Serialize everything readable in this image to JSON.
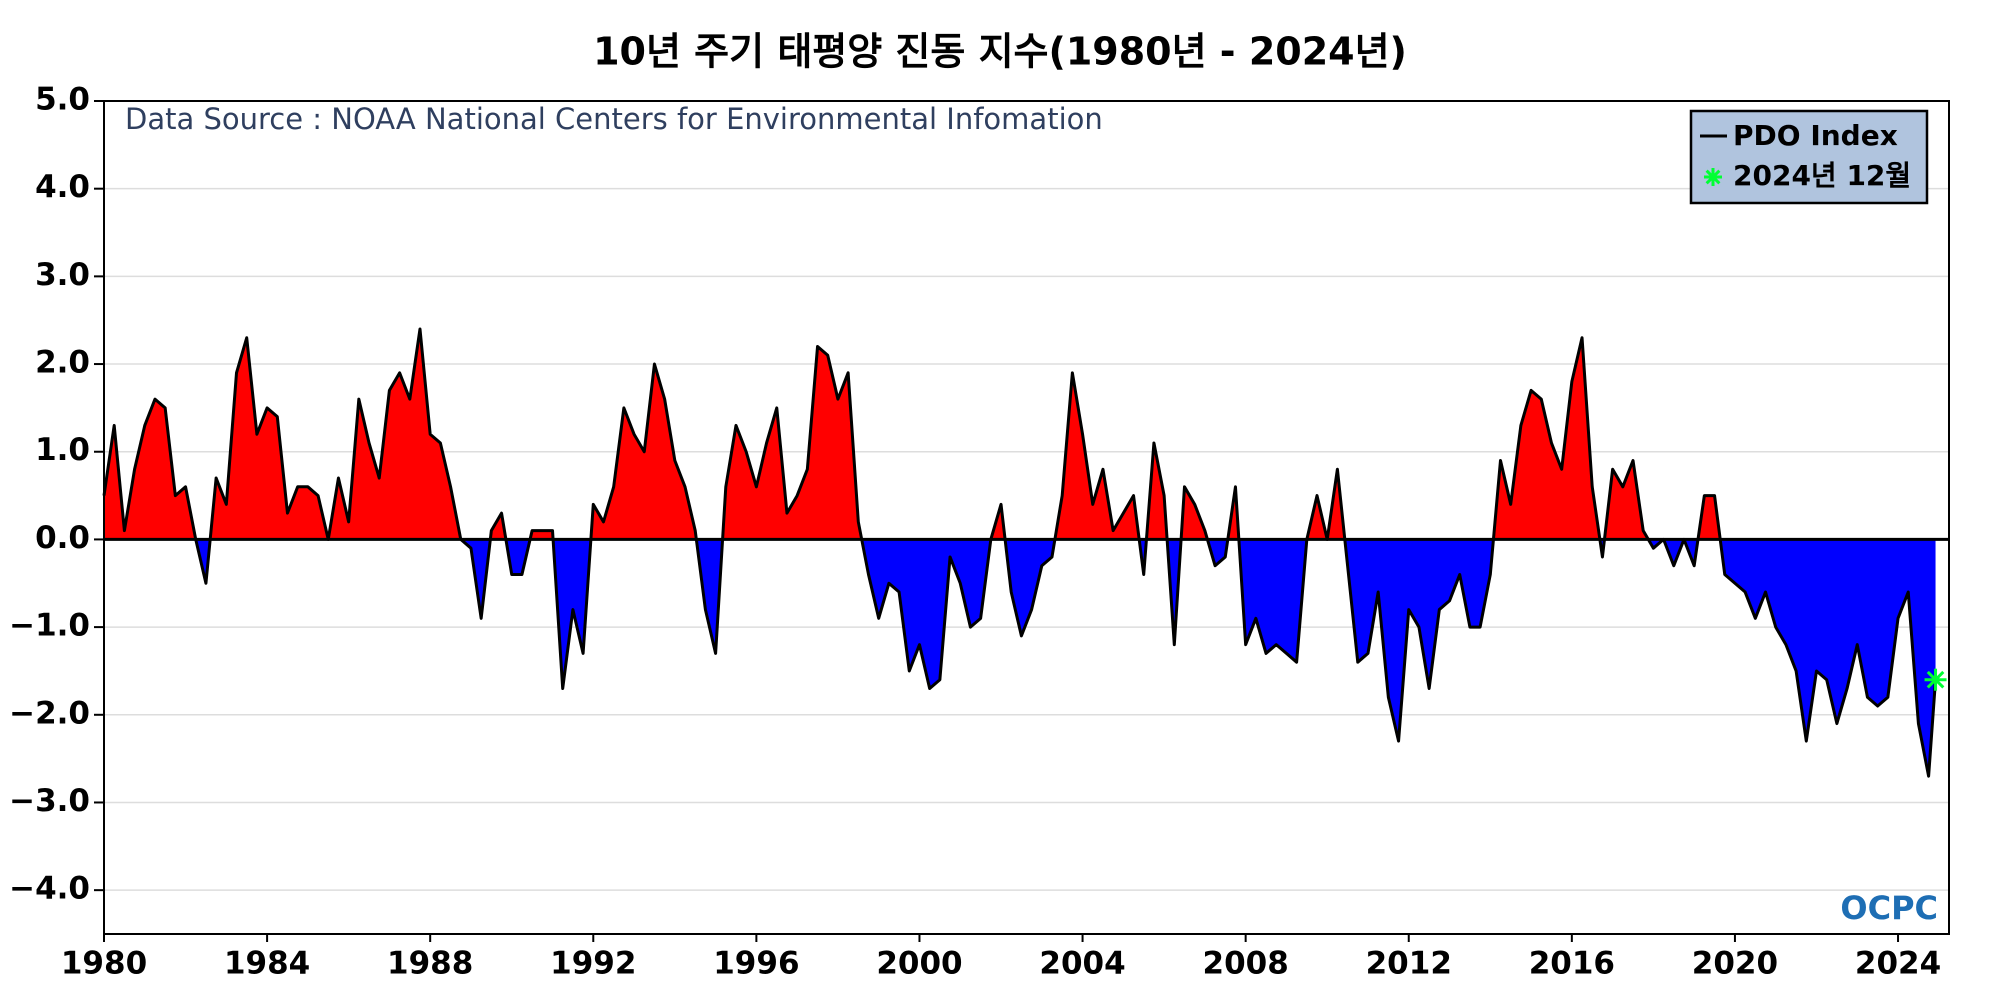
{
  "chart_data": {
    "type": "area",
    "title": "10년 주기 태평양 진동 지수(1980년 - 2024년)",
    "annotations": [
      "Data Source : NOAA National Centers for Environmental Infomation",
      "OCPC"
    ],
    "x": [
      1980,
      1980.25,
      1980.5,
      1980.75,
      1981,
      1981.25,
      1981.5,
      1981.75,
      1982,
      1982.25,
      1982.5,
      1982.75,
      1983,
      1983.25,
      1983.5,
      1983.75,
      1984,
      1984.25,
      1984.5,
      1984.75,
      1985,
      1985.25,
      1985.5,
      1985.75,
      1986,
      1986.25,
      1986.5,
      1986.75,
      1987,
      1987.25,
      1987.5,
      1987.75,
      1988,
      1988.25,
      1988.5,
      1988.75,
      1989,
      1989.25,
      1989.5,
      1989.75,
      1990,
      1990.25,
      1990.5,
      1990.75,
      1991,
      1991.25,
      1991.5,
      1991.75,
      1992,
      1992.25,
      1992.5,
      1992.75,
      1993,
      1993.25,
      1993.5,
      1993.75,
      1994,
      1994.25,
      1994.5,
      1994.75,
      1995,
      1995.25,
      1995.5,
      1995.75,
      1996,
      1996.25,
      1996.5,
      1996.75,
      1997,
      1997.25,
      1997.5,
      1997.75,
      1998,
      1998.25,
      1998.5,
      1998.75,
      1999,
      1999.25,
      1999.5,
      1999.75,
      2000,
      2000.25,
      2000.5,
      2000.75,
      2001,
      2001.25,
      2001.5,
      2001.75,
      2002,
      2002.25,
      2002.5,
      2002.75,
      2003,
      2003.25,
      2003.5,
      2003.75,
      2004,
      2004.25,
      2004.5,
      2004.75,
      2005,
      2005.25,
      2005.5,
      2005.75,
      2006,
      2006.25,
      2006.5,
      2006.75,
      2007,
      2007.25,
      2007.5,
      2007.75,
      2008,
      2008.25,
      2008.5,
      2008.75,
      2009,
      2009.25,
      2009.5,
      2009.75,
      2010,
      2010.25,
      2010.5,
      2010.75,
      2011,
      2011.25,
      2011.5,
      2011.75,
      2012,
      2012.25,
      2012.5,
      2012.75,
      2013,
      2013.25,
      2013.5,
      2013.75,
      2014,
      2014.25,
      2014.5,
      2014.75,
      2015,
      2015.25,
      2015.5,
      2015.75,
      2016,
      2016.25,
      2016.5,
      2016.75,
      2017,
      2017.25,
      2017.5,
      2017.75,
      2018,
      2018.25,
      2018.5,
      2018.75,
      2019,
      2019.25,
      2019.5,
      2019.75,
      2020,
      2020.25,
      2020.5,
      2020.75,
      2021,
      2021.25,
      2021.5,
      2021.75,
      2022,
      2022.25,
      2022.5,
      2022.75,
      2023,
      2023.25,
      2023.5,
      2023.75,
      2024,
      2024.25,
      2024.5,
      2024.75,
      2024.92
    ],
    "series": [
      {
        "name": "PDO Index",
        "color": "#000000",
        "pos_color": "#ff0000",
        "neg_color": "#0000ff",
        "values": [
          0.5,
          1.3,
          0.1,
          0.8,
          1.3,
          1.6,
          1.5,
          0.5,
          0.6,
          0.0,
          -0.5,
          0.7,
          0.4,
          1.9,
          2.3,
          1.2,
          1.5,
          1.4,
          0.3,
          0.6,
          0.6,
          0.5,
          0.0,
          0.7,
          0.2,
          1.6,
          1.1,
          0.7,
          1.7,
          1.9,
          1.6,
          2.4,
          1.2,
          1.1,
          0.6,
          0.0,
          -0.1,
          -0.9,
          0.1,
          0.3,
          -0.4,
          -0.4,
          0.1,
          0.1,
          0.1,
          -1.7,
          -0.8,
          -1.3,
          0.4,
          0.2,
          0.6,
          1.5,
          1.2,
          1.0,
          2.0,
          1.6,
          0.9,
          0.6,
          0.1,
          -0.8,
          -1.3,
          0.6,
          1.3,
          1.0,
          0.6,
          1.1,
          1.5,
          0.3,
          0.5,
          0.8,
          2.2,
          2.1,
          1.6,
          1.9,
          0.2,
          -0.4,
          -0.9,
          -0.5,
          -0.6,
          -1.5,
          -1.2,
          -1.7,
          -1.6,
          -0.2,
          -0.5,
          -1.0,
          -0.9,
          0.0,
          0.4,
          -0.6,
          -1.1,
          -0.8,
          -0.3,
          -0.2,
          0.5,
          1.9,
          1.2,
          0.4,
          0.8,
          0.1,
          0.3,
          0.5,
          -0.4,
          1.1,
          0.5,
          -1.2,
          0.6,
          0.4,
          0.1,
          -0.3,
          -0.2,
          0.6,
          -1.2,
          -0.9,
          -1.3,
          -1.2,
          -1.3,
          -1.4,
          0.0,
          0.5,
          0.0,
          0.8,
          -0.3,
          -1.4,
          -1.3,
          -0.6,
          -1.8,
          -2.3,
          -0.8,
          -1.0,
          -1.7,
          -0.8,
          -0.7,
          -0.4,
          -1.0,
          -1.0,
          -0.4,
          0.9,
          0.4,
          1.3,
          1.7,
          1.6,
          1.1,
          0.8,
          1.8,
          2.3,
          0.6,
          -0.2,
          0.8,
          0.6,
          0.9,
          0.1,
          -0.1,
          0.0,
          -0.3,
          0.0,
          -0.3,
          0.5,
          0.5,
          -0.4,
          -0.5,
          -0.6,
          -0.9,
          -0.6,
          -1.0,
          -1.2,
          -1.5,
          -2.3,
          -1.5,
          -1.6,
          -2.1,
          -1.7,
          -1.2,
          -1.8,
          -1.9,
          -1.8,
          -0.9,
          -0.6,
          -2.1,
          -2.7,
          -1.6
        ]
      },
      {
        "name": "2024년 12월",
        "color": "#00ff33",
        "x": [
          2024.92
        ],
        "values": [
          -1.6
        ]
      }
    ],
    "xlim": [
      1980,
      2025.25
    ],
    "xticks": [
      1980,
      1984,
      1988,
      1992,
      1996,
      2000,
      2004,
      2008,
      2012,
      2016,
      2020,
      2024
    ],
    "ylim": [
      -4.5,
      5.0
    ],
    "yticks": [
      {
        "value": -4,
        "label": "−4.0"
      },
      {
        "value": -3,
        "label": "−3.0"
      },
      {
        "value": -2,
        "label": "−2.0"
      },
      {
        "value": -1,
        "label": "−1.0"
      },
      {
        "value": 0,
        "label": "0.0"
      },
      {
        "value": 1,
        "label": "1.0"
      },
      {
        "value": 2,
        "label": "2.0"
      },
      {
        "value": 3,
        "label": "3.0"
      },
      {
        "value": 4,
        "label": "4.0"
      },
      {
        "value": 5,
        "label": "5.0"
      }
    ],
    "grid": true,
    "legend": "upper right"
  }
}
